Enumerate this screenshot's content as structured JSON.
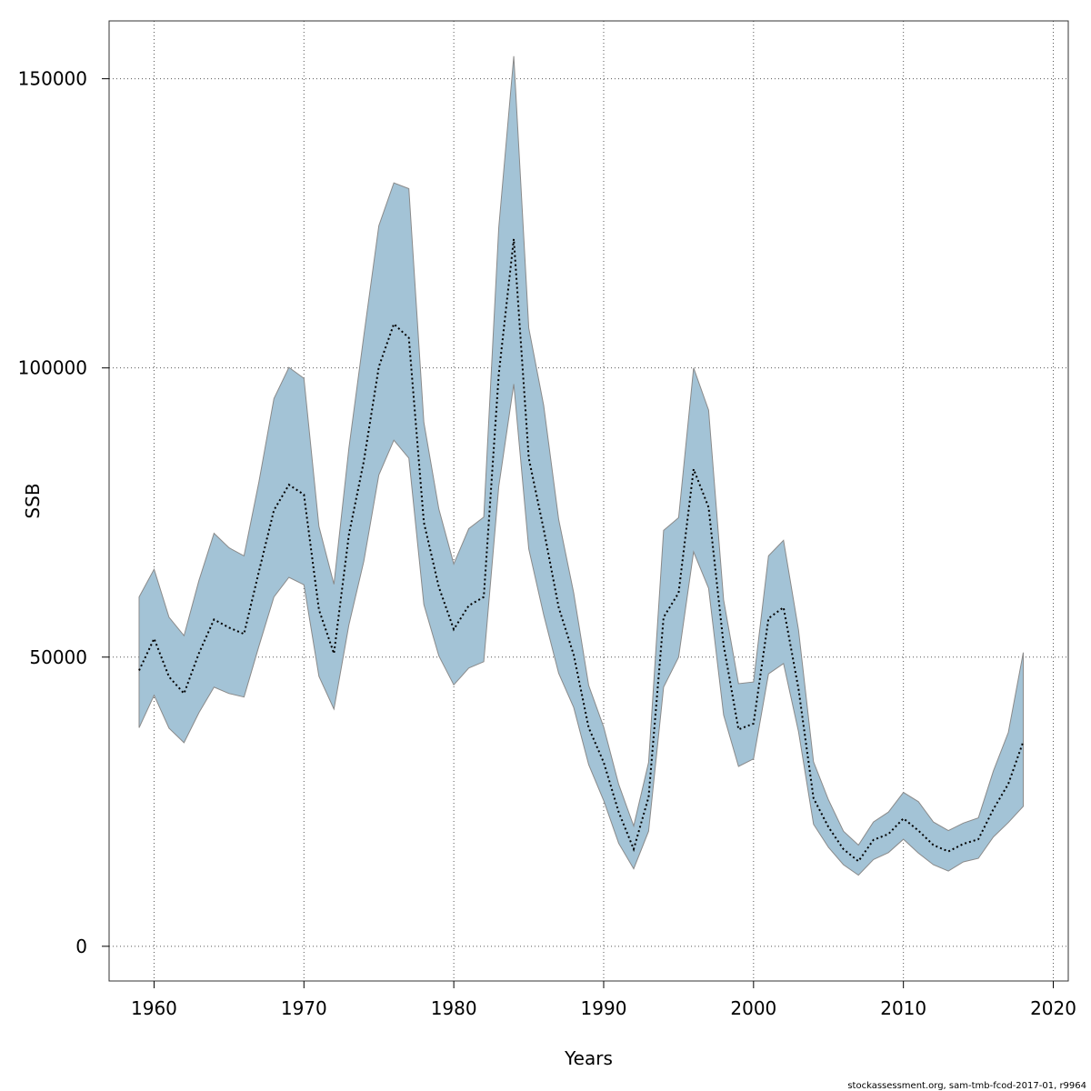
{
  "chart_data": {
    "type": "area",
    "xlabel": "Years",
    "ylabel": "SSB",
    "xlim": [
      1957,
      2021
    ],
    "ylim": [
      -6000,
      160000
    ],
    "x_ticks": [
      1960,
      1970,
      1980,
      1990,
      2000,
      2010,
      2020
    ],
    "y_ticks": [
      0,
      50000,
      100000,
      150000
    ],
    "grid": true,
    "colors": {
      "band": "#a3c3d6",
      "band_edge": "#8a8a8a",
      "line": "#000000",
      "grid": "#555555"
    },
    "x": [
      1959,
      1960,
      1961,
      1962,
      1963,
      1964,
      1965,
      1966,
      1967,
      1968,
      1969,
      1970,
      1971,
      1972,
      1973,
      1974,
      1975,
      1976,
      1977,
      1978,
      1979,
      1980,
      1981,
      1982,
      1983,
      1984,
      1985,
      1986,
      1987,
      1988,
      1989,
      1990,
      1991,
      1992,
      1993,
      1994,
      1995,
      1996,
      1997,
      1998,
      1999,
      2000,
      2001,
      2002,
      2003,
      2004,
      2005,
      2006,
      2007,
      2008,
      2009,
      2010,
      2011,
      2012,
      2013,
      2014,
      2015,
      2016,
      2017,
      2018
    ],
    "series": [
      {
        "values": [
          47700,
          53200,
          46600,
          43700,
          50700,
          56500,
          55100,
          54000,
          64800,
          75400,
          79800,
          78100,
          58200,
          50600,
          71200,
          83900,
          100200,
          107600,
          105200,
          73300,
          62100,
          54800,
          58900,
          60400,
          98900,
          122300,
          84400,
          72100,
          58600,
          50400,
          37800,
          31800,
          23200,
          16800,
          25800,
          56900,
          61100,
          82500,
          75900,
          52100,
          37500,
          38500,
          56700,
          58600,
          44500,
          25600,
          20600,
          16800,
          14700,
          18400,
          19400,
          22100,
          20000,
          17500,
          16400,
          17700,
          18500,
          23700,
          28100,
          35400
        ]
      }
    ],
    "band": {
      "lower": [
        37800,
        43400,
        37700,
        35200,
        40400,
        44800,
        43700,
        43100,
        51900,
        60400,
        63800,
        62500,
        46700,
        41000,
        55600,
        66600,
        81500,
        87500,
        84400,
        59100,
        50200,
        45200,
        48100,
        49200,
        79500,
        97200,
        68700,
        57300,
        47200,
        41300,
        31400,
        25200,
        17800,
        13400,
        19900,
        44800,
        50000,
        68200,
        61900,
        40000,
        31100,
        32400,
        47100,
        48900,
        37100,
        21100,
        17100,
        14100,
        12300,
        15000,
        16200,
        18500,
        16100,
        14100,
        13000,
        14600,
        15200,
        18900,
        21400,
        24200
      ],
      "upper": [
        60400,
        65200,
        56900,
        53700,
        63300,
        71400,
        68900,
        67500,
        80300,
        94700,
        100100,
        98200,
        72600,
        62600,
        86200,
        105600,
        124600,
        132000,
        131000,
        90600,
        75600,
        66100,
        72200,
        74200,
        124300,
        153900,
        106900,
        93500,
        73800,
        61100,
        45100,
        37900,
        28000,
        20800,
        31800,
        71900,
        74100,
        100000,
        92700,
        59900,
        45400,
        45700,
        67500,
        70200,
        54700,
        31900,
        25300,
        19900,
        17500,
        21500,
        23200,
        26600,
        25000,
        21500,
        20000,
        21300,
        22200,
        30300,
        37000,
        50800
      ]
    },
    "footer_note": "stockassessment.org, sam-tmb-fcod-2017-01, r9964"
  }
}
